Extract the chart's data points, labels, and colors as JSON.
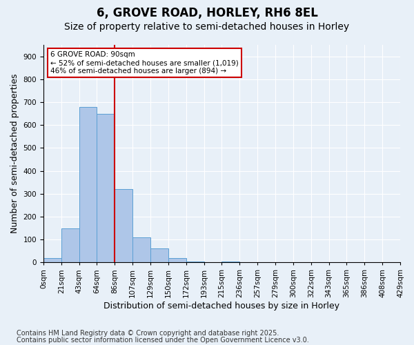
{
  "title": "6, GROVE ROAD, HORLEY, RH6 8EL",
  "subtitle": "Size of property relative to semi-detached houses in Horley",
  "xlabel": "Distribution of semi-detached houses by size in Horley",
  "ylabel": "Number of semi-detached properties",
  "bin_labels": [
    "0sqm",
    "21sqm",
    "43sqm",
    "64sqm",
    "86sqm",
    "107sqm",
    "129sqm",
    "150sqm",
    "172sqm",
    "193sqm",
    "215sqm",
    "236sqm",
    "257sqm",
    "279sqm",
    "300sqm",
    "322sqm",
    "343sqm",
    "365sqm",
    "386sqm",
    "408sqm",
    "429sqm"
  ],
  "bar_heights": [
    20,
    150,
    680,
    650,
    320,
    110,
    60,
    20,
    5,
    0,
    5,
    0,
    0,
    0,
    0,
    0,
    0,
    0,
    0,
    0
  ],
  "bar_color": "#aec6e8",
  "bar_edge_color": "#5a9fd4",
  "property_sqm": 90,
  "annotation_text_line1": "6 GROVE ROAD: 90sqm",
  "annotation_text_line2": "← 52% of semi-detached houses are smaller (1,019)",
  "annotation_text_line3": "46% of semi-detached houses are larger (894) →",
  "annotation_box_color": "#ffffff",
  "annotation_box_edge_color": "#cc0000",
  "vline_color": "#cc0000",
  "vline_x": 3.5,
  "ylim": [
    0,
    950
  ],
  "yticks": [
    0,
    100,
    200,
    300,
    400,
    500,
    600,
    700,
    800,
    900
  ],
  "footnote1": "Contains HM Land Registry data © Crown copyright and database right 2025.",
  "footnote2": "Contains public sector information licensed under the Open Government Licence v3.0.",
  "bg_color": "#e8f0f8",
  "plot_bg_color": "#e8f0f8",
  "grid_color": "#ffffff",
  "title_fontsize": 12,
  "subtitle_fontsize": 10,
  "axis_label_fontsize": 9,
  "tick_fontsize": 7.5,
  "footnote_fontsize": 7
}
